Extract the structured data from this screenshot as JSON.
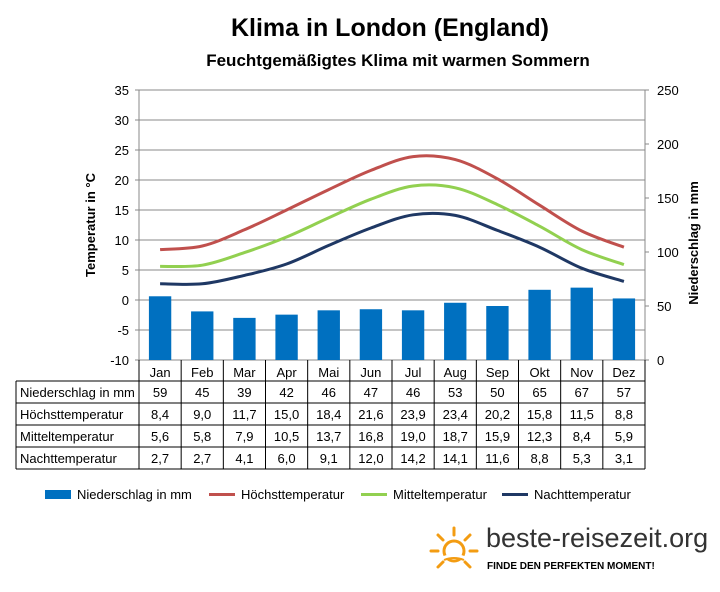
{
  "header": {
    "title": "Klima in London (England)",
    "subtitle": "Feuchtgemäßigtes  Klima mit warmen Sommern"
  },
  "chart_data": {
    "type": "bar",
    "categories": [
      "Jan",
      "Feb",
      "Mar",
      "Apr",
      "Mai",
      "Jun",
      "Jul",
      "Aug",
      "Sep",
      "Okt",
      "Nov",
      "Dez"
    ],
    "ylabel": "Temperatur in °C",
    "y2label": "Niederschlag in mm",
    "ylim": [
      -10,
      35
    ],
    "y2lim": [
      0,
      250
    ],
    "y_ticks": [
      35,
      30,
      25,
      20,
      15,
      10,
      5,
      0,
      -5,
      -10
    ],
    "y2_ticks": [
      250,
      200,
      150,
      100,
      50,
      0
    ],
    "grid": true,
    "legend_position": "bottom",
    "series": [
      {
        "name": "Niederschlag in mm",
        "type": "bar",
        "axis": "right",
        "color": "#0070c0",
        "values": [
          59,
          45,
          39,
          42,
          46,
          47,
          46,
          53,
          50,
          65,
          67,
          57
        ],
        "labels": [
          "59",
          "45",
          "39",
          "42",
          "46",
          "47",
          "46",
          "53",
          "50",
          "65",
          "67",
          "57"
        ]
      },
      {
        "name": "Höchsttemperatur",
        "type": "line",
        "axis": "left",
        "color": "#c0504d",
        "values": [
          8.4,
          9.0,
          11.7,
          15.0,
          18.4,
          21.6,
          23.9,
          23.4,
          20.2,
          15.8,
          11.5,
          8.8
        ],
        "labels": [
          "8,4",
          "9,0",
          "11,7",
          "15,0",
          "18,4",
          "21,6",
          "23,9",
          "23,4",
          "20,2",
          "15,8",
          "11,5",
          "8,8"
        ]
      },
      {
        "name": "Mitteltemperatur",
        "type": "line",
        "axis": "left",
        "color": "#92d050",
        "values": [
          5.6,
          5.8,
          7.9,
          10.5,
          13.7,
          16.8,
          19.0,
          18.7,
          15.9,
          12.3,
          8.4,
          5.9
        ],
        "labels": [
          "5,6",
          "5,8",
          "7,9",
          "10,5",
          "13,7",
          "16,8",
          "19,0",
          "18,7",
          "15,9",
          "12,3",
          "8,4",
          "5,9"
        ]
      },
      {
        "name": "Nachttemperatur",
        "type": "line",
        "axis": "left",
        "color": "#1f3864",
        "values": [
          2.7,
          2.7,
          4.1,
          6.0,
          9.1,
          12.0,
          14.2,
          14.1,
          11.6,
          8.8,
          5.3,
          3.1
        ],
        "labels": [
          "2,7",
          "2,7",
          "4,1",
          "6,0",
          "9,1",
          "12,0",
          "14,2",
          "14,1",
          "11,6",
          "8,8",
          "5,3",
          "3,1"
        ]
      }
    ]
  },
  "brand": {
    "name": "beste-reisezeit.org",
    "slogan": "FINDE DEN PERFEKTEN MOMENT!",
    "accent": "#f39c12"
  }
}
